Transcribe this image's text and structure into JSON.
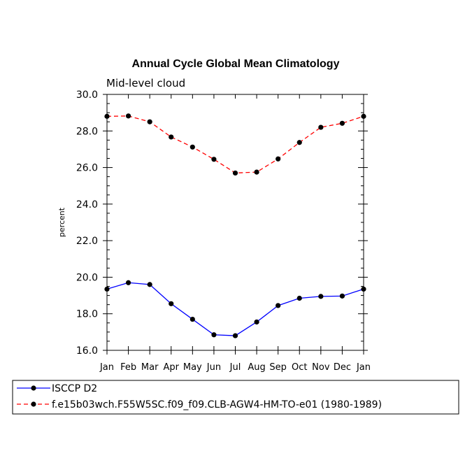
{
  "chart_data": {
    "type": "line",
    "title": "Annual Cycle Global Mean Climatology",
    "subtitle": "Mid-level cloud",
    "ylabel": "percent",
    "xlabel": "",
    "categories": [
      "Jan",
      "Feb",
      "Mar",
      "Apr",
      "May",
      "Jun",
      "Jul",
      "Aug",
      "Sep",
      "Oct",
      "Nov",
      "Dec",
      "Jan"
    ],
    "ylim": [
      16.0,
      30.0
    ],
    "yticks": [
      "16.0",
      "18.0",
      "20.0",
      "22.0",
      "24.0",
      "26.0",
      "28.0",
      "30.0"
    ],
    "grid": false,
    "legend_placement": "bottom",
    "series": [
      {
        "name": "ISCCP D2",
        "color": "#0000ff",
        "dash": "solid",
        "marker": "circle",
        "values": [
          19.35,
          19.7,
          19.6,
          18.55,
          17.7,
          16.85,
          16.8,
          17.55,
          18.45,
          18.85,
          18.95,
          18.97,
          19.35
        ]
      },
      {
        "name": "f.e15b03wch.F55W5SC.f09_f09.CLB-AGW4-HM-TO-e01 (1980-1989)",
        "color": "#ff0000",
        "dash": "dashed",
        "marker": "circle",
        "values": [
          28.8,
          28.82,
          28.5,
          27.67,
          27.12,
          26.45,
          25.7,
          25.75,
          26.47,
          27.37,
          28.2,
          28.42,
          28.8
        ]
      }
    ]
  }
}
